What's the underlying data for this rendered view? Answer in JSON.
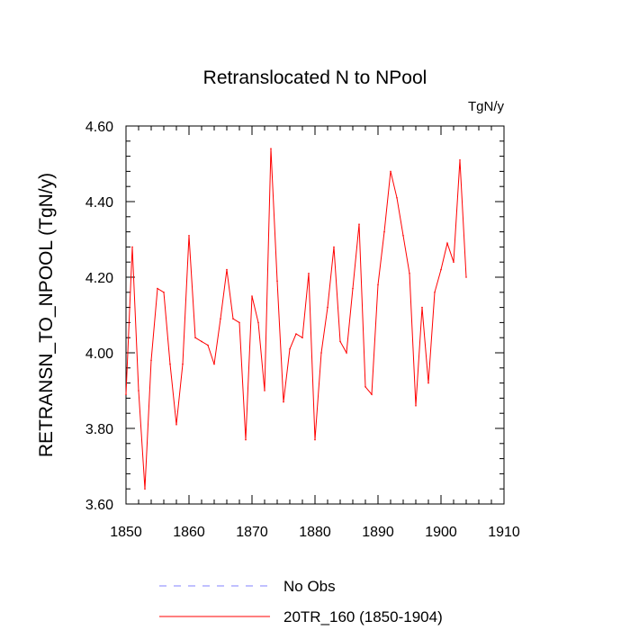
{
  "chart_data": {
    "type": "line",
    "title": "Retranslocated N to NPool",
    "units": "TgN/y",
    "xlabel": "",
    "ylabel": "RETRANSN_TO_NPOOL  (TgN/y)",
    "xlim": [
      1850,
      1910
    ],
    "ylim": [
      3.6,
      4.6
    ],
    "xticks": [
      1850,
      1860,
      1870,
      1880,
      1890,
      1900,
      1910
    ],
    "yticks": [
      3.6,
      3.8,
      4.0,
      4.2,
      4.4,
      4.6
    ],
    "ytick_labels": [
      "3.60",
      "3.80",
      "4.00",
      "4.20",
      "4.40",
      "4.60"
    ],
    "x": [
      1850,
      1851,
      1852,
      1853,
      1854,
      1855,
      1856,
      1857,
      1858,
      1859,
      1860,
      1861,
      1862,
      1863,
      1864,
      1865,
      1866,
      1867,
      1868,
      1869,
      1870,
      1871,
      1872,
      1873,
      1874,
      1875,
      1876,
      1877,
      1878,
      1879,
      1880,
      1881,
      1882,
      1883,
      1884,
      1885,
      1886,
      1887,
      1888,
      1889,
      1890,
      1891,
      1892,
      1893,
      1894,
      1895,
      1896,
      1897,
      1898,
      1899,
      1900,
      1901,
      1902,
      1903,
      1904
    ],
    "series": [
      {
        "name": "20TR_160 (1850-1904)",
        "color": "#ff0000",
        "style": "solid",
        "values": [
          3.89,
          4.28,
          3.9,
          3.64,
          3.98,
          4.17,
          4.16,
          3.97,
          3.81,
          3.97,
          4.31,
          4.04,
          4.03,
          4.02,
          3.97,
          4.09,
          4.22,
          4.09,
          4.08,
          3.77,
          4.15,
          4.08,
          3.9,
          4.54,
          4.19,
          3.87,
          4.01,
          4.05,
          4.04,
          4.21,
          3.77,
          4.0,
          4.12,
          4.28,
          4.03,
          4.0,
          4.17,
          4.34,
          3.91,
          3.89,
          4.18,
          4.32,
          4.48,
          4.41,
          4.31,
          4.21,
          3.86,
          4.12,
          3.92,
          4.16,
          4.22,
          4.29,
          4.24,
          4.51,
          4.2
        ]
      }
    ],
    "legend": [
      {
        "label": "No Obs",
        "color": "#8080ff",
        "style": "dashed"
      },
      {
        "label": "20TR_160 (1850-1904)",
        "color": "#ff0000",
        "style": "solid"
      }
    ],
    "legend_position": "bottom"
  }
}
